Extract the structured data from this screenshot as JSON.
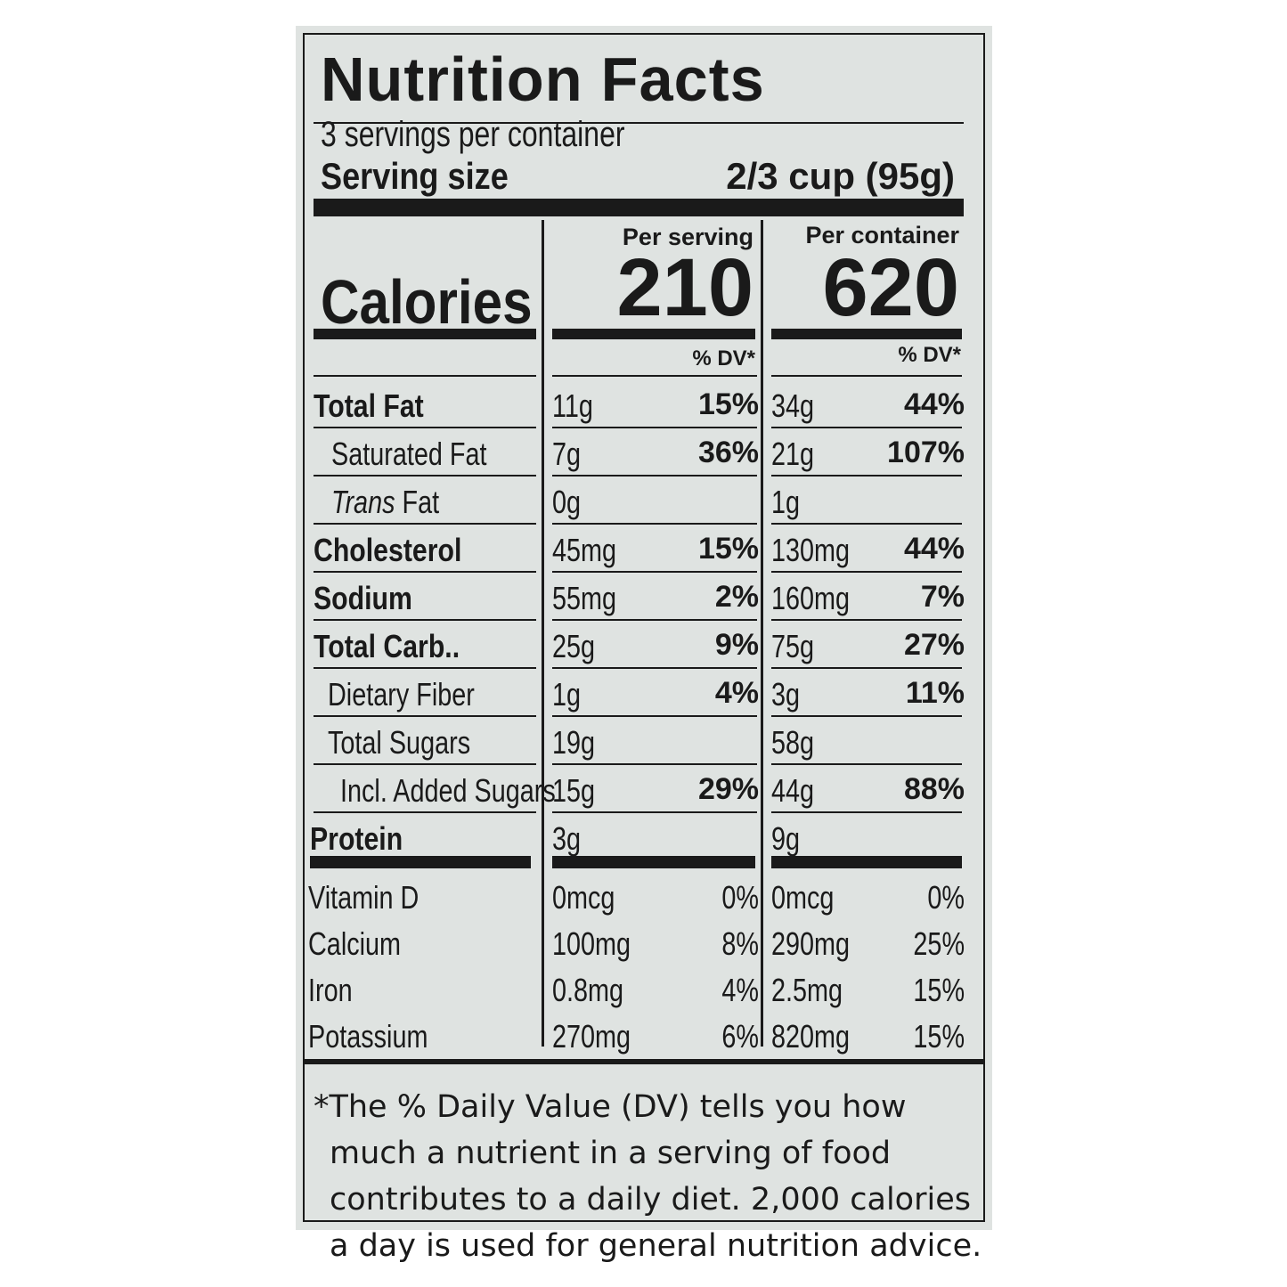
{
  "title": "Nutrition Facts",
  "servings_per_container": "3 servings per container",
  "serving_size_label": "Serving size",
  "serving_size_value": "2/3 cup (95g)",
  "col1_header": "Per serving",
  "col2_header": "Per container",
  "calories_label": "Calories",
  "calories_per_serving": "210",
  "calories_per_container": "620",
  "dv_header": "% DV*",
  "nutrients": [
    {
      "name": "Total Fat",
      "amt1": "11g",
      "pct1": "15%",
      "amt2": "34g",
      "pct2": "44%"
    },
    {
      "name": "Saturated Fat",
      "amt1": "7g",
      "pct1": "36%",
      "amt2": "21g",
      "pct2": "107%"
    },
    {
      "name_italic": "Trans",
      "name_rest": " Fat",
      "amt1": "0g",
      "pct1": "",
      "amt2": "1g",
      "pct2": ""
    },
    {
      "name": "Cholesterol",
      "amt1": "45mg",
      "pct1": "15%",
      "amt2": "130mg",
      "pct2": "44%"
    },
    {
      "name": "Sodium",
      "amt1": "55mg",
      "pct1": "2%",
      "amt2": "160mg",
      "pct2": "7%"
    },
    {
      "name": "Total Carb..",
      "amt1": "25g",
      "pct1": "9%",
      "amt2": "75g",
      "pct2": "27%"
    },
    {
      "name": "Dietary Fiber",
      "amt1": "1g",
      "pct1": "4%",
      "amt2": "3g",
      "pct2": "11%"
    },
    {
      "name": "Total Sugars",
      "amt1": "19g",
      "pct1": "",
      "amt2": "58g",
      "pct2": ""
    },
    {
      "name": "Incl. Added Sugars",
      "amt1": "15g",
      "pct1": "29%",
      "amt2": "44g",
      "pct2": "88%"
    },
    {
      "name": "Protein",
      "amt1": "3g",
      "pct1": "",
      "amt2": "9g",
      "pct2": ""
    }
  ],
  "vitamins": [
    {
      "name": "Vitamin D",
      "amt1": "0mcg",
      "pct1": "0%",
      "amt2": "0mcg",
      "pct2": "0%"
    },
    {
      "name": "Calcium",
      "amt1": "100mg",
      "pct1": "8%",
      "amt2": "290mg",
      "pct2": "25%"
    },
    {
      "name": "Iron",
      "amt1": "0.8mg",
      "pct1": "4%",
      "amt2": "2.5mg",
      "pct2": "15%"
    },
    {
      "name": "Potassium",
      "amt1": "270mg",
      "pct1": "6%",
      "amt2": "820mg",
      "pct2": "15%"
    }
  ],
  "footnote_lines": [
    "*The % Daily Value (DV) tells you how",
    "much a nutrient in a serving of food",
    "contributes to a daily diet. 2,000 calories",
    "a day is used for general nutrition advice."
  ]
}
